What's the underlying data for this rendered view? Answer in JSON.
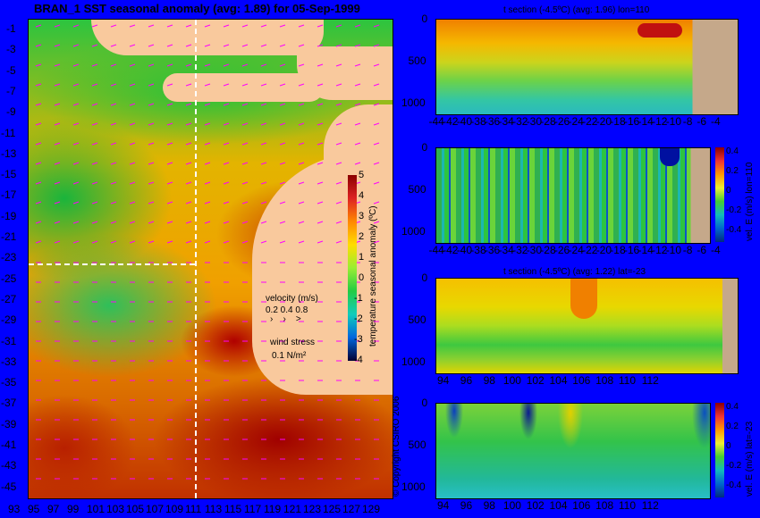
{
  "map": {
    "title": "BRAN_1  SST seasonal anomaly (avg: 1.89) for 05-Sep-1999",
    "lat_ticks": [
      "-1",
      "-3",
      "-5",
      "-7",
      "-9",
      "-11",
      "-13",
      "-15",
      "-17",
      "-19",
      "-21",
      "-23",
      "-25",
      "-27",
      "-29",
      "-31",
      "-33",
      "-35",
      "-37",
      "-39",
      "-41",
      "-43",
      "-45"
    ],
    "lon_ticks": [
      "93",
      "95",
      "97",
      "99",
      "101",
      "103",
      "105",
      "107",
      "109",
      "111",
      "113",
      "115",
      "117",
      "119",
      "121",
      "123",
      "125",
      "127",
      "129"
    ],
    "colorbar_ticks": [
      "5",
      "4",
      "3",
      "2",
      "1",
      "0",
      "-1",
      "-2",
      "-3",
      "-4"
    ],
    "colorbar_label": "temperature seasonal anomaly (ºC)",
    "velocity_label": "velocity (m/s)",
    "velocity_scale": "0.2 0.4 0.8",
    "wind_label": "wind stress",
    "wind_scale": "0.1 N/m²",
    "copyright": "© Copyright CSIRO 2006",
    "colors": {
      "land": "#f9c99d",
      "vectors": "#ff00ff",
      "crosshair": "#ffffff"
    }
  },
  "panels": [
    {
      "title": "t section (-4.5ºC) (avg: 1.96) lon=110",
      "x_ticks": [
        "-44",
        "-42",
        "-40",
        "-38",
        "-36",
        "-34",
        "-32",
        "-30",
        "-28",
        "-26",
        "-24",
        "-22",
        "-20",
        "-18",
        "-16",
        "-14",
        "-12",
        "-10",
        "-8",
        "-6",
        "-4"
      ],
      "y_ticks": [
        "0",
        "500",
        "1000"
      ],
      "colorbar": false
    },
    {
      "title": "",
      "x_ticks": [
        "-44",
        "-42",
        "-40",
        "-38",
        "-36",
        "-34",
        "-32",
        "-30",
        "-28",
        "-26",
        "-24",
        "-22",
        "-20",
        "-18",
        "-16",
        "-14",
        "-12",
        "-10",
        "-8",
        "-6",
        "-4"
      ],
      "y_ticks": [
        "0",
        "500",
        "1000"
      ],
      "colorbar": true,
      "colorbar_ticks": [
        "0.4",
        "0.2",
        "0",
        "-0.2",
        "-0.4"
      ],
      "colorbar_label": "vel. E (m/s) lon=110"
    },
    {
      "title": "t section (-4.5ºC) (avg: 1.22) lat=-23",
      "x_ticks": [
        "94",
        "96",
        "98",
        "100",
        "102",
        "104",
        "106",
        "108",
        "110",
        "112"
      ],
      "y_ticks": [
        "0",
        "500",
        "1000"
      ],
      "colorbar": false
    },
    {
      "title": "",
      "x_ticks": [
        "94",
        "96",
        "98",
        "100",
        "102",
        "104",
        "106",
        "108",
        "110",
        "112"
      ],
      "y_ticks": [
        "0",
        "500",
        "1000"
      ],
      "colorbar": true,
      "colorbar_ticks": [
        "0.4",
        "0.2",
        "0",
        "-0.2",
        "-0.4"
      ],
      "colorbar_label": "vel. E (m/s) lat=-23"
    }
  ],
  "chart_data": [
    {
      "type": "heatmap",
      "title": "BRAN_1  SST seasonal anomaly (avg: 1.89) for 05-Sep-1999",
      "x_range": [
        93,
        130
      ],
      "y_range": [
        -45,
        0
      ],
      "color_range": [
        -4,
        5
      ],
      "colorbar_label": "temperature seasonal anomaly (ºC)"
    },
    {
      "type": "heatmap",
      "title": "t section (-4.5ºC) (avg: 1.96) lon=110",
      "x_range": [
        -45,
        -3
      ],
      "y_range": [
        1050,
        0
      ]
    },
    {
      "type": "heatmap",
      "x_range": [
        -45,
        -3
      ],
      "y_range": [
        1050,
        0
      ],
      "color_range": [
        -0.4,
        0.4
      ],
      "colorbar_label": "vel. E (m/s) lon=110"
    },
    {
      "type": "heatmap",
      "title": "t section (-4.5ºC) (avg: 1.22) lat=-23",
      "x_range": [
        93,
        114
      ],
      "y_range": [
        1050,
        0
      ]
    },
    {
      "type": "heatmap",
      "x_range": [
        93,
        114
      ],
      "y_range": [
        1050,
        0
      ],
      "color_range": [
        -0.4,
        0.4
      ],
      "colorbar_label": "vel. E (m/s) lat=-23"
    }
  ]
}
